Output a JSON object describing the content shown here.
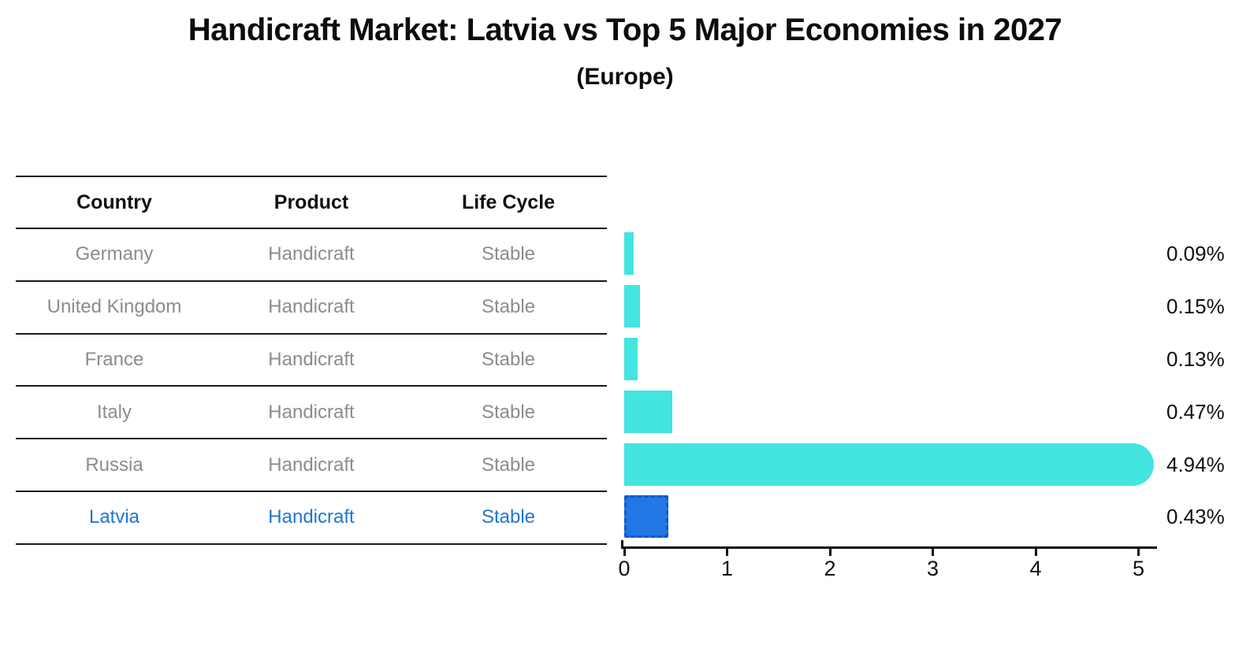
{
  "title": "Handicraft Market: Latvia vs Top 5 Major Economies in 2027",
  "subtitle": "(Europe)",
  "table": {
    "headers": [
      "Country",
      "Product",
      "Life Cycle"
    ]
  },
  "chart_data": {
    "type": "bar",
    "orientation": "horizontal",
    "title": "Handicraft Market: Latvia vs Top 5 Major Economies in 2027",
    "subtitle": "(Europe)",
    "categories": [
      "Germany",
      "United Kingdom",
      "France",
      "Italy",
      "Russia",
      "Latvia"
    ],
    "values": [
      0.09,
      0.15,
      0.13,
      0.47,
      4.94,
      0.43
    ],
    "value_labels": [
      "0.09%",
      "0.15%",
      "0.13%",
      "0.47%",
      "4.94%",
      "0.43%"
    ],
    "rows": [
      {
        "country": "Germany",
        "product": "Handicraft",
        "life_cycle": "Stable",
        "value": 0.09,
        "value_label": "0.09%",
        "highlight": false
      },
      {
        "country": "United Kingdom",
        "product": "Handicraft",
        "life_cycle": "Stable",
        "value": 0.15,
        "value_label": "0.15%",
        "highlight": false
      },
      {
        "country": "France",
        "product": "Handicraft",
        "life_cycle": "Stable",
        "value": 0.13,
        "value_label": "0.13%",
        "highlight": false
      },
      {
        "country": "Italy",
        "product": "Handicraft",
        "life_cycle": "Stable",
        "value": 0.47,
        "value_label": "0.47%",
        "highlight": false
      },
      {
        "country": "Russia",
        "product": "Handicraft",
        "life_cycle": "Stable",
        "value": 4.94,
        "value_label": "4.94%",
        "highlight": false
      },
      {
        "country": "Latvia",
        "product": "Handicraft",
        "life_cycle": "Stable",
        "value": 0.43,
        "value_label": "0.43%",
        "highlight": true
      }
    ],
    "xlim": [
      0,
      5
    ],
    "x_ticks": [
      "0",
      "1",
      "2",
      "3",
      "4",
      "5"
    ],
    "grid": false,
    "legend": "none",
    "colors": {
      "bar": "#42E5E0",
      "highlight_fill": "#2178E4",
      "highlight_border": "#1258C8",
      "row_text": "#8C8C8C",
      "highlight_text": "#1D76D2",
      "axis": "#111111"
    }
  }
}
